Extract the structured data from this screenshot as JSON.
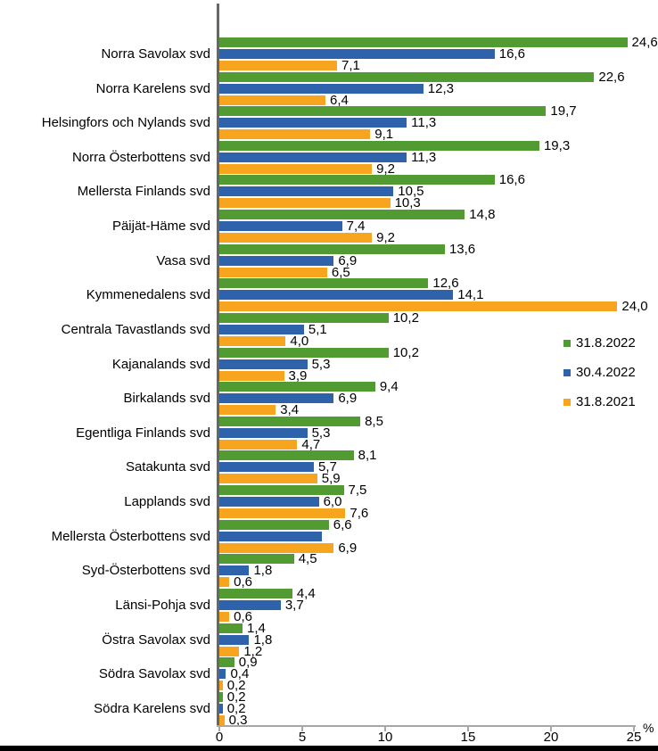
{
  "chart_data": {
    "type": "bar",
    "orientation": "horizontal",
    "title": "",
    "unit": "%",
    "xlim": [
      0,
      25
    ],
    "x_ticks": [
      0,
      5,
      10,
      15,
      20,
      25
    ],
    "grid": false,
    "legend_position": "right-middle",
    "decimal_separator": ",",
    "categories": [
      "Norra Savolax svd",
      "Norra Karelens svd",
      "Helsingfors och Nylands svd",
      "Norra Österbottens svd",
      "Mellersta Finlands svd",
      "Päijät-Häme svd",
      "Vasa svd",
      "Kymmenedalens svd",
      "Centrala Tavastlands svd",
      "Kajanalands svd",
      "Birkalands svd",
      "Egentliga Finlands svd",
      "Satakunta svd",
      "Lapplands svd",
      "Mellersta Österbottens svd",
      "Syd-Österbottens svd",
      "Länsi-Pohja svd",
      "Östra Savolax svd",
      "Södra Savolax svd",
      "Södra Karelens svd"
    ],
    "series": [
      {
        "name": "31.8.2022",
        "color": "#529A32",
        "values": [
          24.6,
          22.6,
          19.7,
          19.3,
          16.6,
          14.8,
          13.6,
          12.6,
          10.2,
          10.2,
          9.4,
          8.5,
          8.1,
          7.5,
          6.6,
          4.5,
          4.4,
          1.4,
          0.9,
          0.2
        ],
        "labels": [
          "24,6",
          "22,6",
          "19,7",
          "19,3",
          "16,6",
          "14,8",
          "13,6",
          "12,6",
          "10,2",
          "10,2",
          "9,4",
          "8,5",
          "8,1",
          "7,5",
          "6,6",
          "4,5",
          "4,4",
          "1,4",
          "0,9",
          "0,2"
        ]
      },
      {
        "name": "30.4.2022",
        "color": "#2E63AC",
        "values": [
          16.6,
          12.3,
          11.3,
          11.3,
          10.5,
          7.4,
          6.9,
          14.1,
          5.1,
          5.3,
          6.9,
          5.3,
          5.7,
          6.0,
          6.2,
          1.8,
          3.7,
          1.8,
          0.4,
          0.2
        ],
        "labels": [
          "16,6",
          "12,3",
          "11,3",
          "11,3",
          "10,5",
          "7,4",
          "6,9",
          "14,1",
          "5,1",
          "5,3",
          "6,9",
          "5,3",
          "5,7",
          "6,0",
          "",
          "1,8",
          "3,7",
          "1,8",
          "0,4",
          "0,2"
        ]
      },
      {
        "name": "31.8.2021",
        "color": "#F7A41E",
        "values": [
          7.1,
          6.4,
          9.1,
          9.2,
          10.3,
          9.2,
          6.5,
          24.0,
          4.0,
          3.9,
          3.4,
          4.7,
          5.9,
          7.6,
          6.9,
          0.6,
          0.6,
          1.2,
          0.2,
          0.3
        ],
        "labels": [
          "7,1",
          "6,4",
          "9,1",
          "9,2",
          "10,3",
          "9,2",
          "6,5",
          "24,0",
          "4,0",
          "3,9",
          "3,4",
          "4,7",
          "5,9",
          "7,6",
          "6,9",
          "0,6",
          "0,6",
          "1,2",
          "0,2",
          "0,3"
        ]
      }
    ]
  }
}
